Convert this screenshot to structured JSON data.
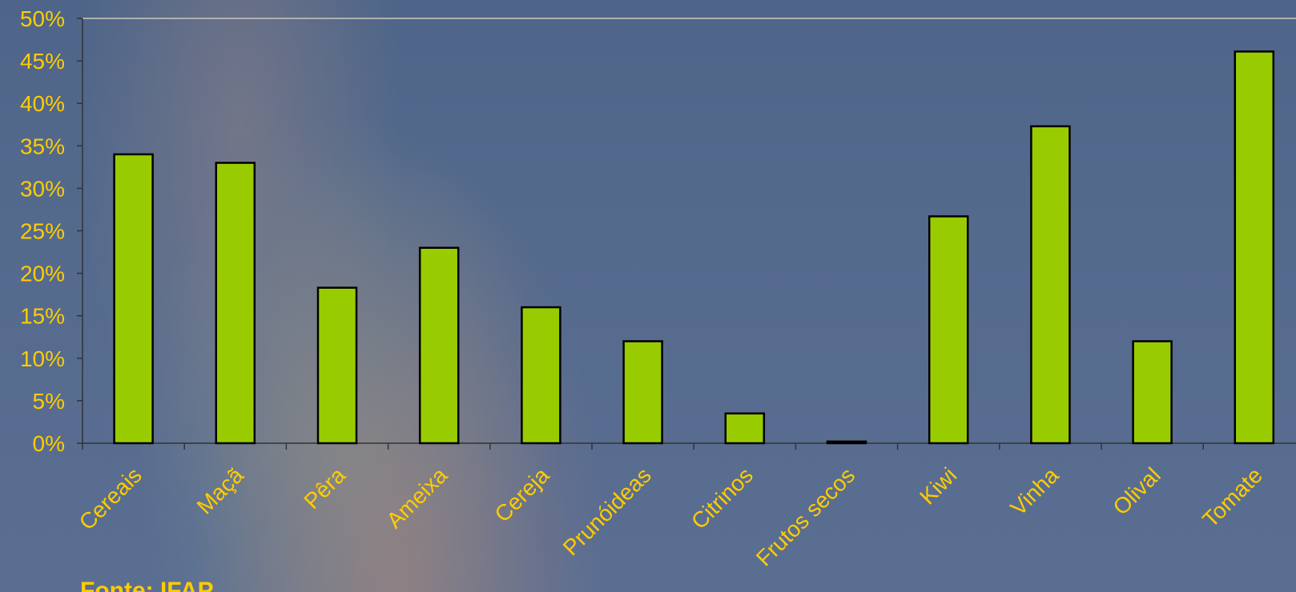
{
  "chart_data": {
    "type": "bar",
    "categories": [
      "Cereais",
      "Maçã",
      "Pêra",
      "Ameixa",
      "Cereja",
      "Prunóideas",
      "Citrinos",
      "Frutos secos",
      "Kiwi",
      "Vinha",
      "Olival",
      "Tomate"
    ],
    "values": [
      34,
      33,
      18.3,
      23,
      16,
      12,
      3.5,
      0.2,
      26.7,
      37.3,
      12,
      46.1
    ],
    "ylim": [
      0,
      50
    ],
    "yticks": [
      0,
      5,
      10,
      15,
      20,
      25,
      30,
      35,
      40,
      45,
      50
    ],
    "ytick_labels": [
      "0%",
      "5%",
      "10%",
      "15%",
      "20%",
      "25%",
      "30%",
      "35%",
      "40%",
      "45%",
      "50%"
    ],
    "grid": "top line only",
    "legend": "none",
    "title": "",
    "xlabel": "",
    "ylabel": ""
  },
  "source_note": "Fonte: IFAP",
  "colors": {
    "bar_fill": "#99cc00",
    "bar_stroke": "#000000",
    "tick_label": "#ffcc00",
    "axis": "#333333",
    "top_line": "#b0b0b0"
  }
}
